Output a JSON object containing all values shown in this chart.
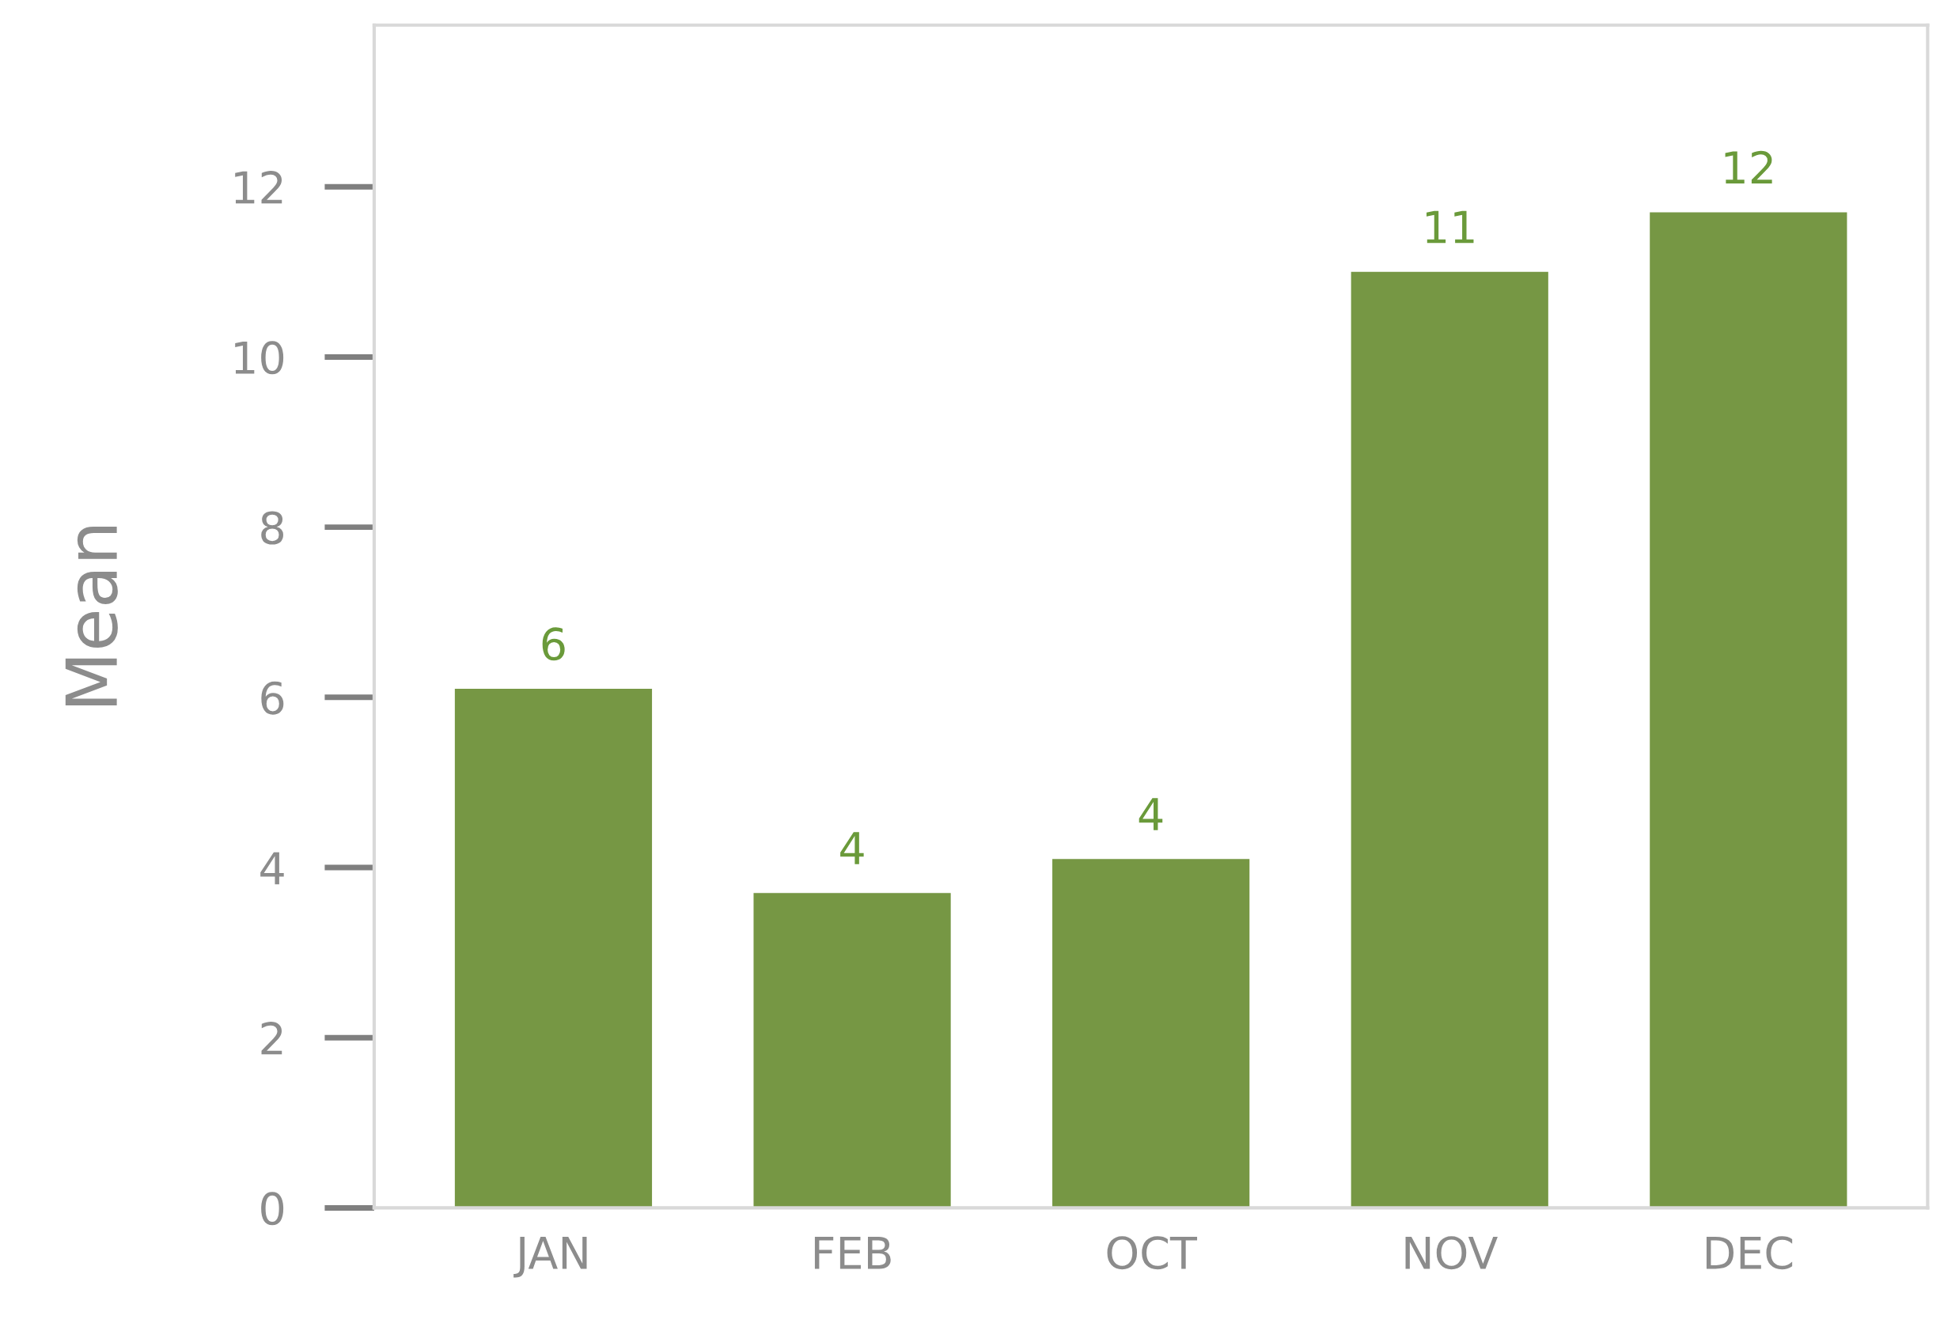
{
  "chart_data": {
    "type": "bar",
    "ylabel": "Mean",
    "categories": [
      "JAN",
      "FEB",
      "OCT",
      "NOV",
      "DEC"
    ],
    "values": [
      6.1,
      3.7,
      4.1,
      11.0,
      11.7
    ],
    "value_labels": [
      "6",
      "4",
      "4",
      "11",
      "12"
    ],
    "color": "#769744",
    "ylim": [
      0,
      13.9
    ],
    "yticks": [
      0,
      2,
      4,
      6,
      8,
      10,
      12
    ],
    "grid": false,
    "legend": false
  }
}
